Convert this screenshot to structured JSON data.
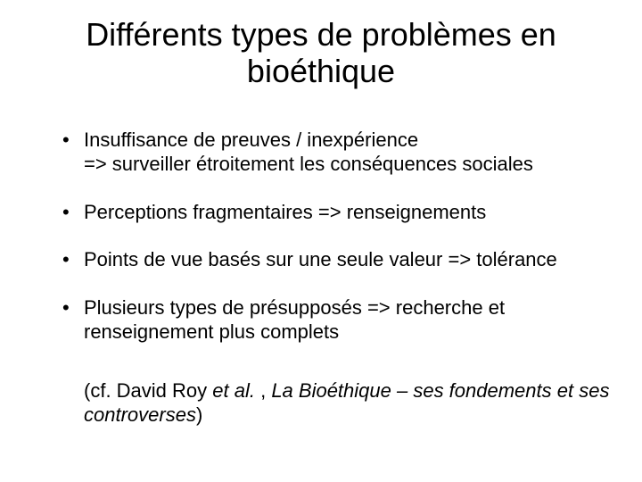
{
  "title_fontsize": 36,
  "body_fontsize": 22,
  "citation_fontsize": 22,
  "text_color": "#000000",
  "background_color": "#ffffff",
  "title": "Différents types de problèmes en bioéthique",
  "bullets": [
    "Insuffisance de preuves / inexpérience\n=> surveiller étroitement les conséquences sociales",
    "Perceptions fragmentaires => renseignements",
    "Points de vue basés sur une seule valeur => tolérance",
    "Plusieurs types de présupposés => recherche et renseignement plus complets"
  ],
  "citation_prefix": "(cf. David Roy ",
  "citation_etal": "et al.",
  "citation_mid": " , ",
  "citation_book": "La Bioéthique – ses fondements et ses controverses",
  "citation_suffix": ")"
}
